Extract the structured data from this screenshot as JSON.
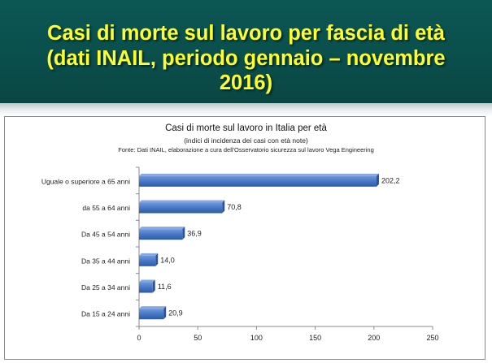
{
  "header": {
    "title_line1": "Casi di morte sul lavoro per fascia di età",
    "title_line2": "(dati INAIL, periodo gennaio – novembre",
    "title_line3": "2016)"
  },
  "colors": {
    "header_bg": "#0a4f4c",
    "header_text": "#ffff2e",
    "bar": "#4a7ac8"
  },
  "chart_data": {
    "type": "bar",
    "orientation": "horizontal",
    "title": "Casi di morte sul lavoro in Italia per età",
    "subtitle": "(indici di incidenza dei casi con età note)",
    "source": "Fonte: Dati INAIL, elaborazione a cura dell'Osservatorio sicurezza sul lavoro Vega Engineering",
    "categories": [
      "Uguale o superiore a 65 anni",
      "da 55 a 64 anni",
      "Da 45 a 54 anni",
      "Da 35 a 44 anni",
      "Da 25 a 34 anni",
      "Da 15 a 24 anni"
    ],
    "values": [
      202.2,
      70.8,
      36.9,
      14.0,
      11.6,
      20.9
    ],
    "value_labels": [
      "202,2",
      "70,8",
      "36,9",
      "14,0",
      "11,6",
      "20,9"
    ],
    "xlim": [
      0,
      250
    ],
    "xticks": [
      0,
      50,
      100,
      150,
      200,
      250
    ],
    "xtick_labels": [
      "0",
      "50",
      "100",
      "150",
      "200",
      "250"
    ],
    "grid": false,
    "legend": "none"
  }
}
